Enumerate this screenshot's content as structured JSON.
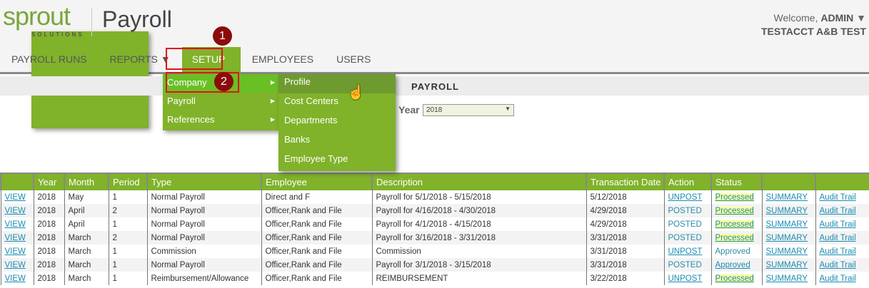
{
  "brand": {
    "logo_word": "sprout",
    "logo_sub": "SOLUTIONS",
    "app_title": "Payroll"
  },
  "user": {
    "welcome": "Welcome,",
    "name": "ADMIN",
    "caret": "▼",
    "account": "TESTACCT A&B TEST"
  },
  "nav": [
    "PAYROLL RUNS",
    "REPORTS ▼",
    "SETUP",
    "EMPLOYEES",
    "USERS"
  ],
  "page_title": "PAYROLL",
  "filter": {
    "label": "Year",
    "value": "2018"
  },
  "menu": {
    "items": [
      "Company",
      "Payroll",
      "References"
    ],
    "submenu": [
      "Profile",
      "Cost Centers",
      "Departments",
      "Banks",
      "Employee Type"
    ]
  },
  "annotations": [
    "1",
    "2"
  ],
  "colors": {
    "green": "#80b22a",
    "highlight": "#fcff9e",
    "link": "#1a8bb0",
    "annotation": "#e0131a"
  },
  "table": {
    "headers": [
      "",
      "Year",
      "Month",
      "Period",
      "Type",
      "Employee",
      "Description",
      "Transaction Date",
      "Action",
      "Status",
      "",
      ""
    ],
    "rows": [
      [
        "VIEW",
        "2018",
        "May",
        "1",
        "Normal Payroll",
        "Direct and F",
        "Payroll for 5/1/2018 - 5/15/2018",
        "5/12/2018",
        "UNPOST",
        "Processed",
        "SUMMARY",
        "Audit Trail"
      ],
      [
        "VIEW",
        "2018",
        "April",
        "2",
        "Normal Payroll",
        "Officer,Rank and File",
        "Payroll for 4/16/2018 - 4/30/2018",
        "4/29/2018",
        "POSTED",
        "Processed",
        "SUMMARY",
        "Audit Trail"
      ],
      [
        "VIEW",
        "2018",
        "April",
        "1",
        "Normal Payroll",
        "Officer,Rank and File",
        "Payroll for 4/1/2018 - 4/15/2018",
        "4/29/2018",
        "POSTED",
        "Processed",
        "SUMMARY",
        "Audit Trail"
      ],
      [
        "VIEW",
        "2018",
        "March",
        "2",
        "Normal Payroll",
        "Officer,Rank and File",
        "Payroll for 3/16/2018 - 3/31/2018",
        "3/31/2018",
        "POSTED",
        "Processed",
        "SUMMARY",
        "Audit Trail"
      ],
      [
        "VIEW",
        "2018",
        "March",
        "1",
        "Commission",
        "Officer,Rank and File",
        "Commission",
        "3/31/2018",
        "UNPOST",
        "Approved",
        "SUMMARY",
        "Audit Trail"
      ],
      [
        "VIEW",
        "2018",
        "March",
        "1",
        "Normal Payroll",
        "Officer,Rank and File",
        "Payroll for 3/1/2018 - 3/15/2018",
        "3/31/2018",
        "POSTED",
        "Approved",
        "SUMMARY",
        "Audit Trail"
      ],
      [
        "VIEW",
        "2018",
        "March",
        "1",
        "Reimbursement/Allowance",
        "Officer,Rank and File",
        "REIMBURSEMENT",
        "3/22/2018",
        "UNPOST",
        "Processed",
        "SUMMARY",
        "Audit Trail"
      ]
    ],
    "status_style": [
      "link-highlight",
      "link-highlight",
      "link-highlight",
      "link-highlight",
      "plain",
      "link",
      "link-highlight"
    ]
  }
}
